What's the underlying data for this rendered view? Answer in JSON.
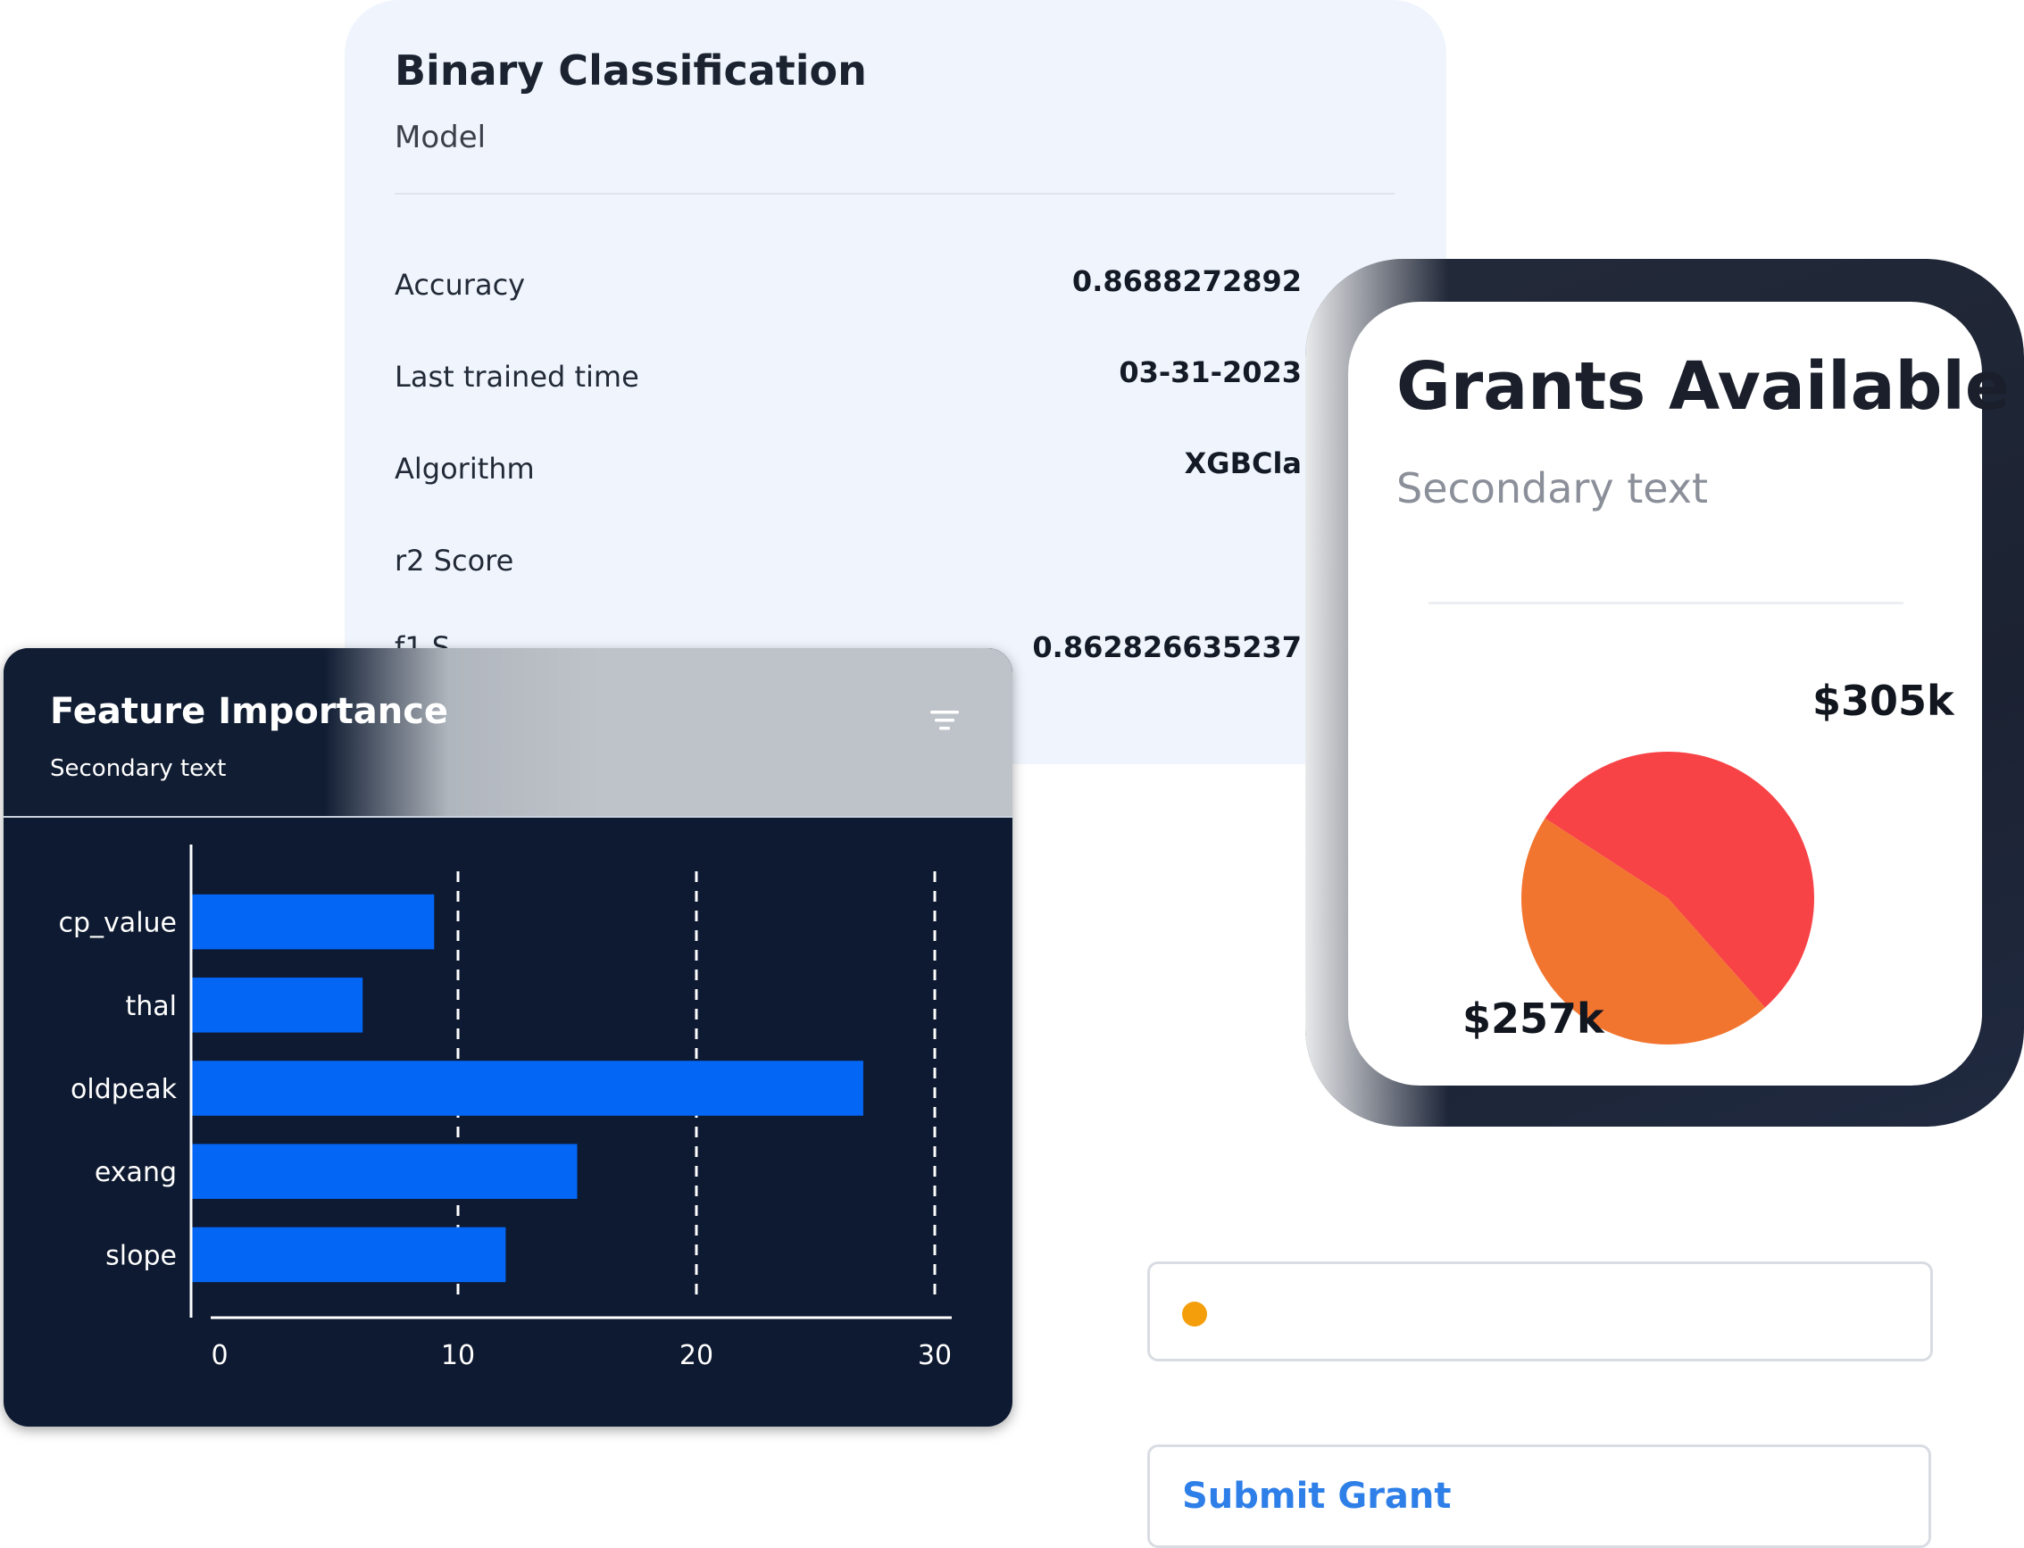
{
  "model_card": {
    "title": "Binary Classification",
    "subtitle": "Model",
    "metrics": [
      {
        "label": "Accuracy",
        "value": "0.8688272892"
      },
      {
        "label": "Last trained time",
        "value": "03-31-2023"
      },
      {
        "label": "Algorithm",
        "value": "XGBCla"
      },
      {
        "label": "r2 Score",
        "value": ""
      },
      {
        "label": "f1 S",
        "value": "0.862826635237"
      }
    ]
  },
  "feature_card": {
    "title": "Feature Importance",
    "subtitle": "Secondary text",
    "filter_icon": "filter-icon"
  },
  "grants_card": {
    "title": "Grants Available",
    "subtitle": "Secondary text",
    "slice_labels": [
      "$305k",
      "$257k"
    ]
  },
  "status_field": {
    "value": "",
    "dot_color": "#f59e0b"
  },
  "submit_button": {
    "label": "Submit Grant"
  },
  "chart_data": [
    {
      "type": "bar",
      "orientation": "horizontal",
      "title": "Feature Importance",
      "subtitle": "Secondary text",
      "categories": [
        "cp_value",
        "thal",
        "oldpeak",
        "exang",
        "slope"
      ],
      "values": [
        9,
        6,
        27,
        15,
        12
      ],
      "xlim": [
        0,
        30
      ],
      "xticks": [
        0,
        10,
        20,
        30
      ],
      "grid": "dashed vertical",
      "color": "#0466f5"
    },
    {
      "type": "pie",
      "title": "Grants Available",
      "subtitle": "Secondary text",
      "labels": [
        "$305k",
        "$257k"
      ],
      "values": [
        305,
        257
      ],
      "colors": [
        "#f74346",
        "#f2752f"
      ]
    }
  ]
}
